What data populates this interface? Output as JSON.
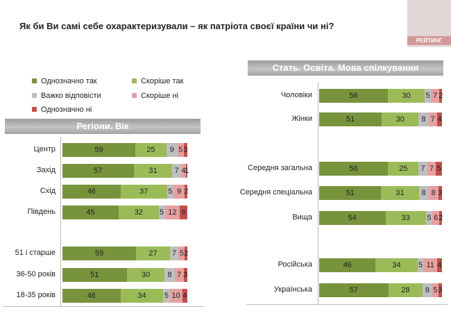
{
  "title": "Як  би Ви самі себе охарактеризували – як патріота своєї країни чи ні?",
  "logo_text": "РЕЙТИНГ",
  "chart_data": {
    "type": "stacked-bar-horizontal",
    "legend": [
      {
        "name": "Однозначно так",
        "color": "#77933c"
      },
      {
        "name": "Скоріше так",
        "color": "#9bbb59"
      },
      {
        "name": "Важко відповісти",
        "color": "#bfbfbf"
      },
      {
        "name": "Скоріше ні",
        "color": "#e6a0a0"
      },
      {
        "name": "Однозначно ні",
        "color": "#c0504d"
      }
    ],
    "panels": [
      {
        "id": "regions-age",
        "title": "Регіони. Вік",
        "rows": [
          {
            "label": "Центр",
            "values": [
              59,
              25,
              9,
              5,
              3
            ]
          },
          {
            "label": "Захід",
            "values": [
              57,
              31,
              7,
              4,
              1
            ]
          },
          {
            "label": "Схід",
            "values": [
              46,
              37,
              5,
              9,
              2
            ]
          },
          {
            "label": "Південь",
            "values": [
              45,
              32,
              5,
              12,
              6
            ]
          },
          {
            "label": "51 і старше",
            "values": [
              59,
              27,
              7,
              5,
              2
            ]
          },
          {
            "label": "36-50 років",
            "values": [
              51,
              30,
              8,
              7,
              3
            ]
          },
          {
            "label": "18-35 років",
            "values": [
              46,
              34,
              5,
              10,
              4
            ]
          }
        ]
      },
      {
        "id": "gender-education-language",
        "title": "Стать. Освіта. Мова спілкування",
        "rows": [
          {
            "label": "Чоловіки",
            "values": [
              56,
              30,
              5,
              7,
              2
            ]
          },
          {
            "label": "Жінки",
            "values": [
              51,
              30,
              8,
              7,
              4
            ]
          },
          {
            "label": "Середня загальна",
            "values": [
              56,
              25,
              7,
              7,
              5
            ]
          },
          {
            "label": "Середня спеціальна",
            "values": [
              51,
              31,
              8,
              8,
              3
            ]
          },
          {
            "label": "Вища",
            "values": [
              54,
              33,
              5,
              6,
              2
            ]
          },
          {
            "label": "Російська",
            "values": [
              46,
              34,
              5,
              11,
              4
            ]
          },
          {
            "label": "Українська",
            "values": [
              57,
              28,
              8,
              5,
              3
            ]
          }
        ]
      }
    ]
  }
}
